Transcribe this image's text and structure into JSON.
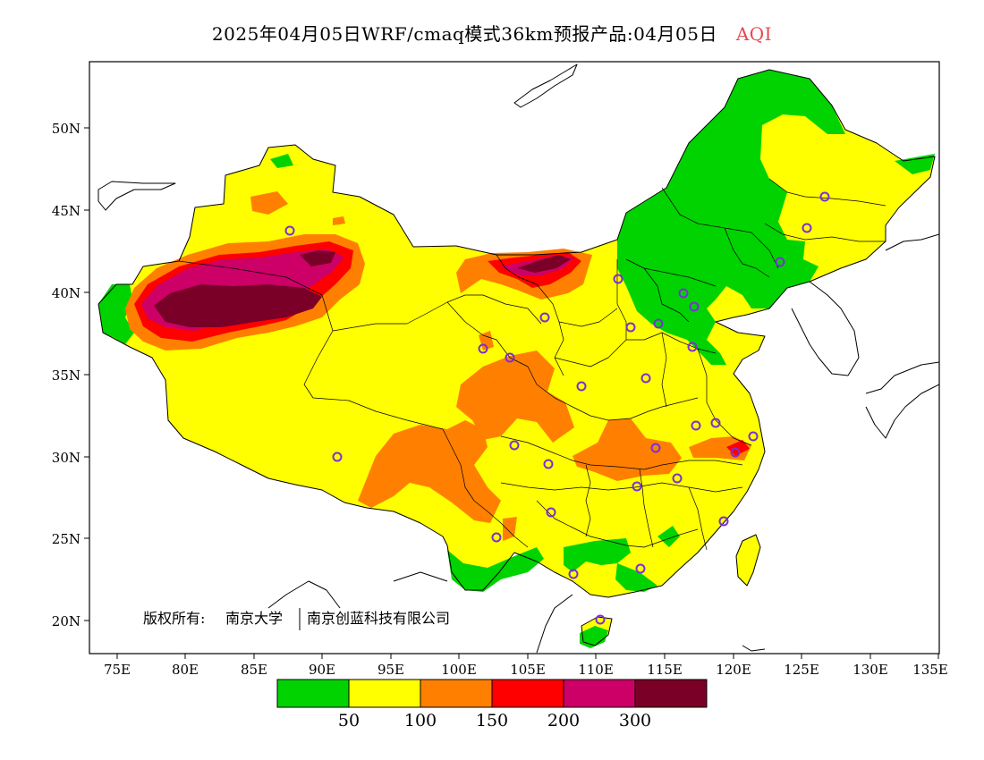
{
  "header": {
    "title": "2025年04月05日WRF/cmaq模式36km预报产品:04月05日",
    "variable": "AQI",
    "variable_color": "#e8484e"
  },
  "map": {
    "lat_labels": [
      "50N",
      "45N",
      "40N",
      "35N",
      "30N",
      "25N",
      "20N"
    ],
    "lon_labels": [
      "75E",
      "80E",
      "85E",
      "90E",
      "95E",
      "100E",
      "105E",
      "110E",
      "115E",
      "120E",
      "125E",
      "130E",
      "135E"
    ],
    "copyright_prefix": "版权所有:",
    "copyright_org1": "南京大学",
    "copyright_org2": "南京创蓝科技有限公司",
    "station_marker_color": "#7b2fd6"
  },
  "legend": {
    "colors": [
      "#00d300",
      "#ffff00",
      "#ff8000",
      "#ff0000",
      "#cc0066",
      "#7a0028"
    ],
    "labels": [
      "50",
      "100",
      "150",
      "200",
      "300"
    ]
  }
}
